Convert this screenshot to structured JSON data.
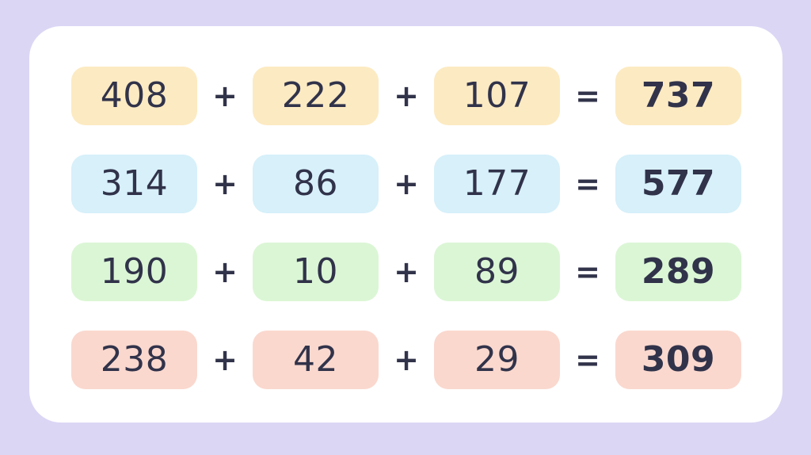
{
  "colors": {
    "bg": "#DCD6F5",
    "card": "#FFFFFF",
    "ink": "#31334A",
    "row-yellow": "#FCEAC2",
    "row-blue": "#D7F0FA",
    "row-green": "#DBF6D5",
    "row-pink": "#FAD8CE"
  },
  "symbols": {
    "plus": "+",
    "equals": "="
  },
  "equations": [
    {
      "theme": "yellow",
      "operands": [
        "408",
        "222",
        "107"
      ],
      "result": "737"
    },
    {
      "theme": "blue",
      "operands": [
        "314",
        "86",
        "177"
      ],
      "result": "577"
    },
    {
      "theme": "green",
      "operands": [
        "190",
        "10",
        "89"
      ],
      "result": "289"
    },
    {
      "theme": "pink",
      "operands": [
        "238",
        "42",
        "29"
      ],
      "result": "309"
    }
  ]
}
